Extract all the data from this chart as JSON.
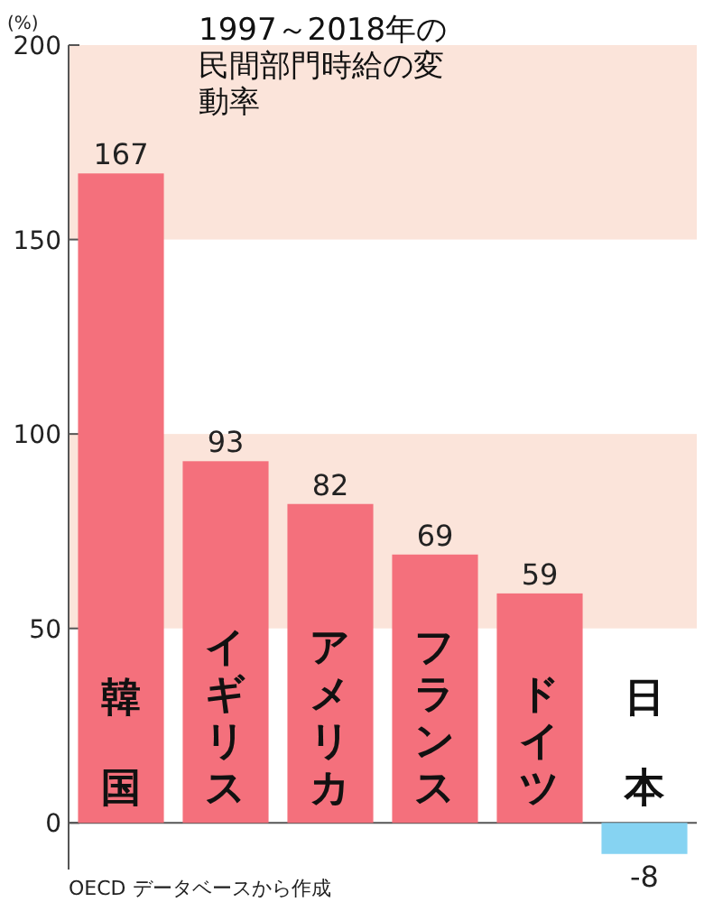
{
  "chart_data": {
    "type": "bar",
    "title": "1997～2018年の民間部門時給の変動率",
    "ylabel": "(%)",
    "categories": [
      "韓国",
      "イギリス",
      "アメリカ",
      "フランス",
      "ドイツ",
      "日本"
    ],
    "values": [
      167,
      93,
      82,
      69,
      59,
      -8
    ],
    "colors": [
      "#f4707c",
      "#f4707c",
      "#f4707c",
      "#f4707c",
      "#f4707c",
      "#86d3f2"
    ],
    "ylim": [
      -12,
      200
    ],
    "yticks": [
      0,
      50,
      100,
      150,
      200
    ],
    "bands": [
      {
        "axis": "y",
        "from": 150,
        "to": 200,
        "color": "#fbe4da"
      },
      {
        "axis": "y",
        "from": 50,
        "to": 100,
        "color": "#fbe4da"
      }
    ],
    "data_labels": true,
    "annotations": [
      "OECD データベースから作成"
    ]
  }
}
